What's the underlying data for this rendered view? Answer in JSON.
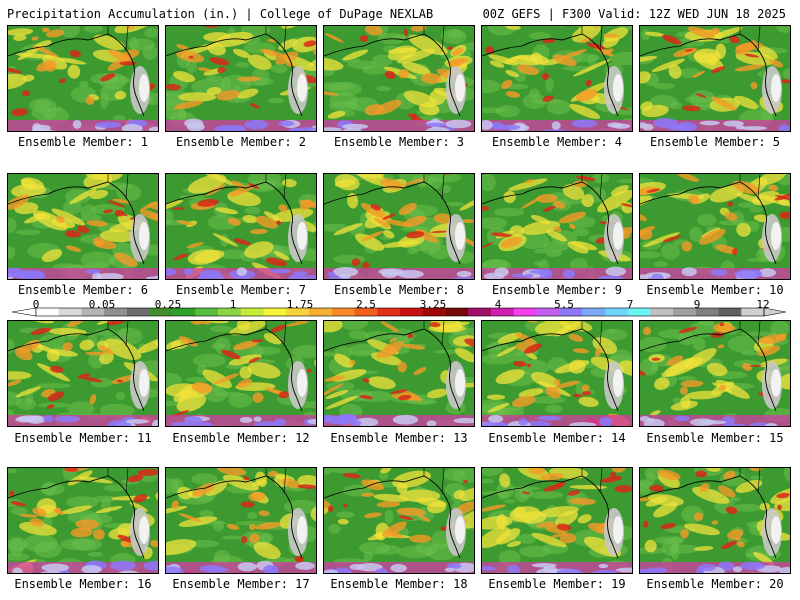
{
  "header": {
    "title": "Precipitation Accumulation (in.) | College of DuPage NEXLAB",
    "run_info": "00Z GEFS | F300 Valid: 12Z WED JUN 18 2025"
  },
  "panels": [
    {
      "label": "Ensemble Member: 1"
    },
    {
      "label": "Ensemble Member: 2"
    },
    {
      "label": "Ensemble Member: 3"
    },
    {
      "label": "Ensemble Member: 4"
    },
    {
      "label": "Ensemble Member: 5"
    },
    {
      "label": "Ensemble Member: 6"
    },
    {
      "label": "Ensemble Member: 7"
    },
    {
      "label": "Ensemble Member: 8"
    },
    {
      "label": "Ensemble Member: 9"
    },
    {
      "label": "Ensemble Member: 10"
    },
    {
      "label": "Ensemble Member: 11"
    },
    {
      "label": "Ensemble Member: 12"
    },
    {
      "label": "Ensemble Member: 13"
    },
    {
      "label": "Ensemble Member: 14"
    },
    {
      "label": "Ensemble Member: 15"
    },
    {
      "label": "Ensemble Member: 16"
    },
    {
      "label": "Ensemble Member: 17"
    },
    {
      "label": "Ensemble Member: 18"
    },
    {
      "label": "Ensemble Member: 19"
    },
    {
      "label": "Ensemble Member: 20"
    }
  ],
  "colorbar": {
    "ticks": [
      "0",
      "0.05",
      "0.25",
      "1",
      "1.75",
      "2.5",
      "3.25",
      "4",
      "5.5",
      "7",
      "9",
      "12"
    ],
    "colors": [
      "#ffffff",
      "#d8d8d8",
      "#b4b4b4",
      "#909090",
      "#6c6c6c",
      "#3f8f2f",
      "#2fa02a",
      "#58bc3c",
      "#8ad44a",
      "#c6ec3a",
      "#f4f43a",
      "#f8d23a",
      "#f8b030",
      "#f88a28",
      "#f06020",
      "#e03018",
      "#c81010",
      "#a00808",
      "#780808",
      "#a0106a",
      "#d020b0",
      "#f040f0",
      "#c060f0",
      "#8c78f8",
      "#7aa8f8",
      "#70d4f8",
      "#6af4f4",
      "#c0c0c0",
      "#a0a0a0",
      "#808080",
      "#606060",
      "#d0d0d0"
    ]
  }
}
